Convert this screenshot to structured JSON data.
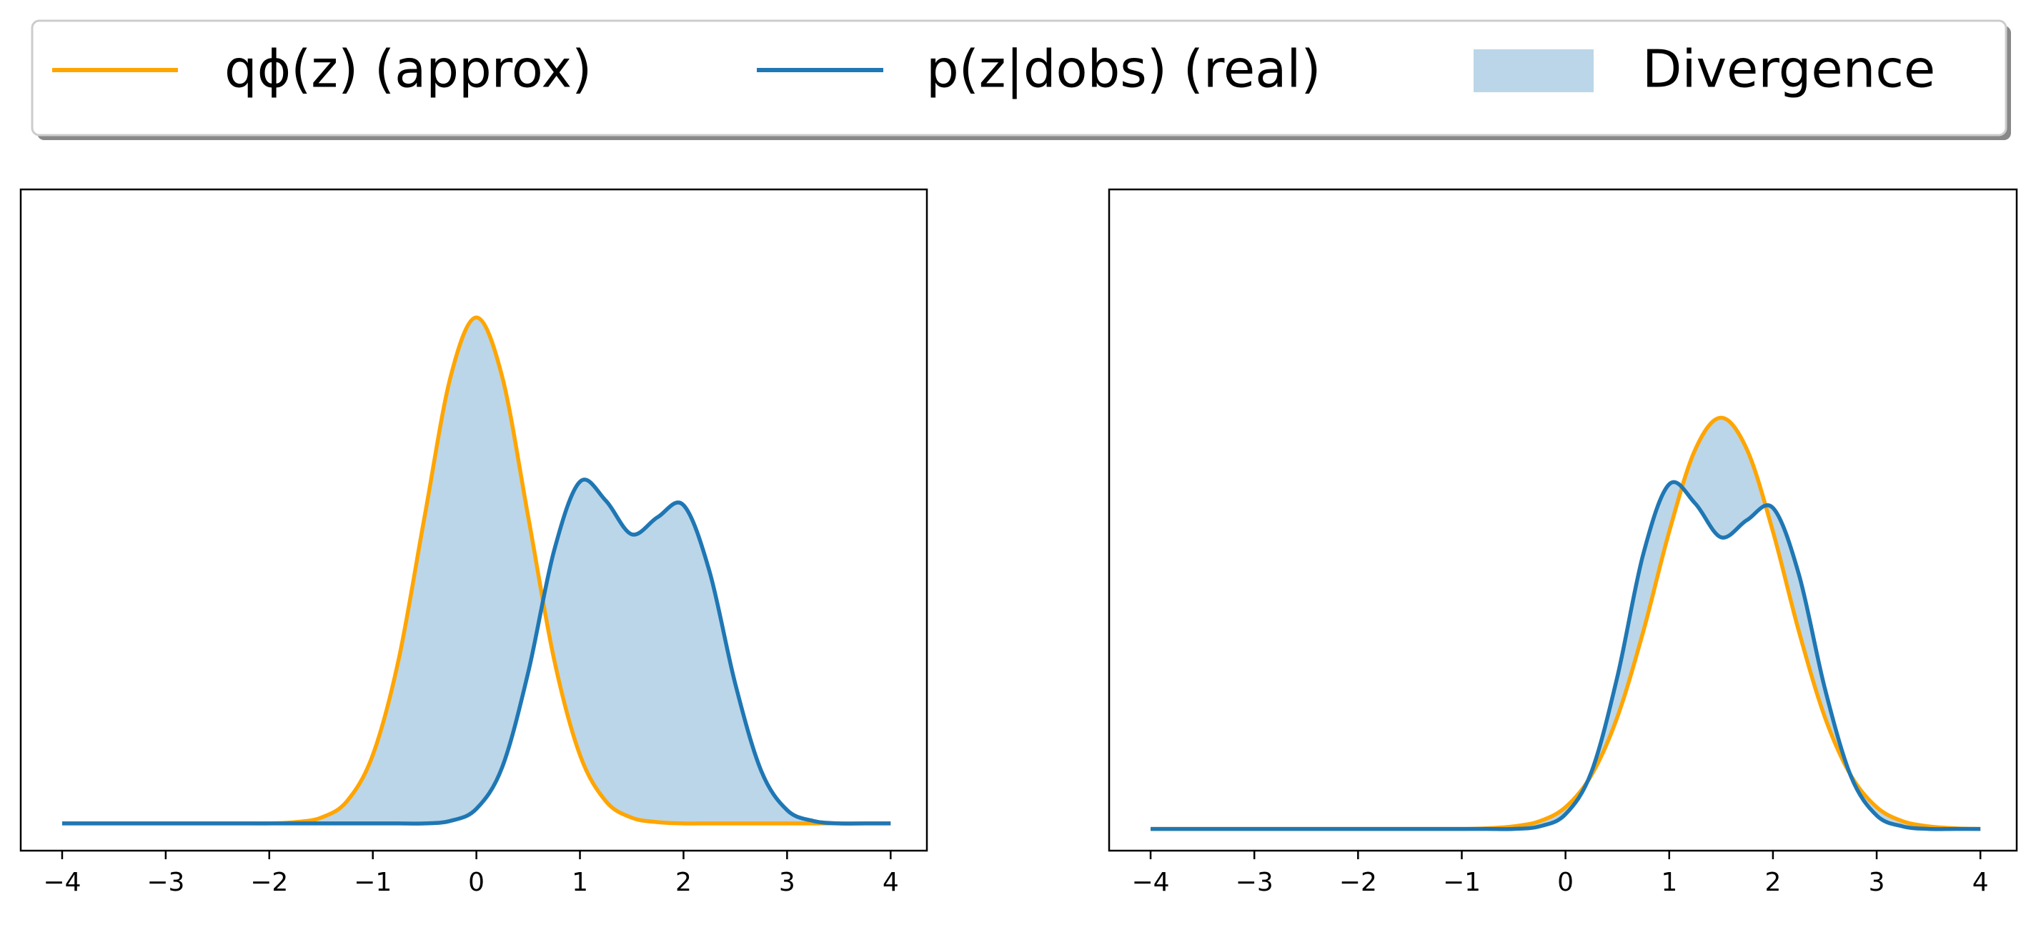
{
  "chart_data": [
    {
      "type": "line",
      "x": [
        -4,
        -3.75,
        -3.5,
        -3.25,
        -3,
        -2.75,
        -2.5,
        -2.25,
        -2,
        -1.75,
        -1.5,
        -1.25,
        -1,
        -0.75,
        -0.5,
        -0.25,
        0,
        0.25,
        0.5,
        0.75,
        1,
        1.25,
        1.5,
        1.75,
        2,
        2.25,
        2.5,
        2.75,
        3,
        3.25,
        3.5,
        3.75,
        4
      ],
      "series": [
        {
          "name": "qϕ(z) (approx)",
          "color": "#ffa500",
          "values": [
            0,
            0,
            0,
            0,
            0,
            0,
            0,
            0,
            0,
            0.002,
            0.009,
            0.035,
            0.108,
            0.259,
            0.484,
            0.704,
            0.798,
            0.704,
            0.484,
            0.259,
            0.108,
            0.035,
            0.009,
            0.002,
            0,
            0,
            0,
            0,
            0,
            0,
            0,
            0,
            0
          ]
        },
        {
          "name": "p(z|dobs) (real)",
          "color": "#1f77b4",
          "values": [
            0,
            0,
            0,
            0,
            0,
            0,
            0,
            0,
            0,
            0,
            0,
            0,
            0,
            0,
            0,
            0.004,
            0.023,
            0.089,
            0.238,
            0.43,
            0.539,
            0.509,
            0.456,
            0.483,
            0.502,
            0.398,
            0.22,
            0.083,
            0.021,
            0.004,
            0,
            0,
            0
          ]
        }
      ],
      "fill": {
        "label": "Divergence",
        "color": "#1f77b4",
        "opacity": 0.3
      },
      "xlim": [
        -4.4,
        4.35
      ],
      "ylim": [
        -0.043,
        1.0
      ],
      "xticks": [
        {
          "value": -4,
          "label": "−4"
        },
        {
          "value": -3,
          "label": "−3"
        },
        {
          "value": -2,
          "label": "−2"
        },
        {
          "value": -1,
          "label": "−1"
        },
        0,
        1,
        2,
        3,
        4
      ]
    },
    {
      "type": "line",
      "x": [
        -4,
        -3.75,
        -3.5,
        -3.25,
        -3,
        -2.75,
        -2.5,
        -2.25,
        -2,
        -1.75,
        -1.5,
        -1.25,
        -1,
        -0.75,
        -0.5,
        -0.25,
        0,
        0.25,
        0.5,
        0.75,
        1,
        1.25,
        1.5,
        1.75,
        2,
        2.25,
        2.5,
        2.75,
        3,
        3.25,
        3.5,
        3.75,
        4
      ],
      "series": [
        {
          "color": "#ffa500",
          "values": [
            0,
            0,
            0,
            0,
            0,
            0,
            0,
            0,
            0,
            0,
            0,
            0,
            0,
            0.001,
            0.004,
            0.012,
            0.034,
            0.084,
            0.175,
            0.309,
            0.465,
            0.593,
            0.643,
            0.593,
            0.465,
            0.309,
            0.175,
            0.084,
            0.034,
            0.012,
            0.004,
            0.001,
            0
          ]
        },
        {
          "color": "#1f77b4",
          "values": [
            0,
            0,
            0,
            0,
            0,
            0,
            0,
            0,
            0,
            0,
            0,
            0,
            0,
            0,
            0,
            0.004,
            0.023,
            0.089,
            0.238,
            0.43,
            0.539,
            0.509,
            0.456,
            0.483,
            0.502,
            0.398,
            0.22,
            0.083,
            0.021,
            0.004,
            0,
            0,
            0
          ]
        }
      ],
      "fill": {
        "color": "#1f77b4",
        "opacity": 0.3
      },
      "xlim": [
        -4.4,
        4.35
      ],
      "ylim": [
        -0.034,
        1.0
      ],
      "xticks": [
        {
          "value": -4,
          "label": "−4"
        },
        {
          "value": -3,
          "label": "−3"
        },
        {
          "value": -2,
          "label": "−2"
        },
        {
          "value": -1,
          "label": "−1"
        },
        0,
        1,
        2,
        3,
        4
      ]
    }
  ]
}
